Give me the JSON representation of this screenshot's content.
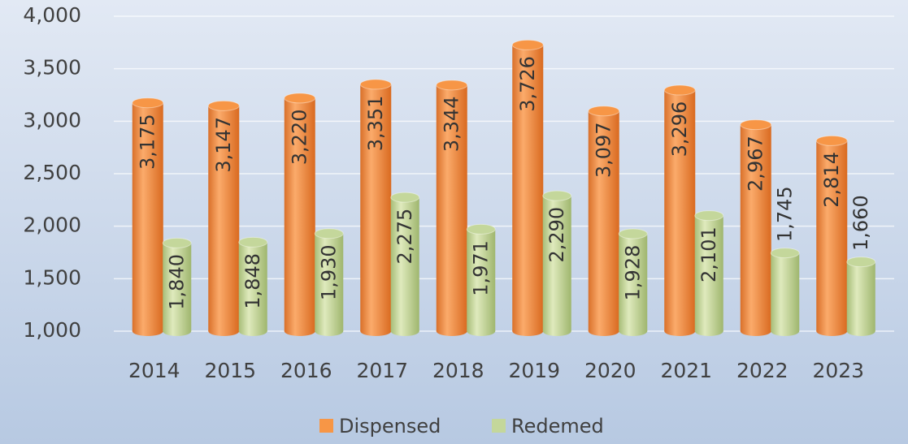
{
  "chart_data": {
    "type": "bar",
    "categories": [
      "2014",
      "2015",
      "2016",
      "2017",
      "2018",
      "2019",
      "2020",
      "2021",
      "2022",
      "2023"
    ],
    "series": [
      {
        "name": "Dispensed",
        "color": "#f79646",
        "values": [
          3175,
          3147,
          3220,
          3351,
          3344,
          3726,
          3097,
          3296,
          2967,
          2814
        ],
        "value_labels": [
          "3,175",
          "3,147",
          "3,220",
          "3,351",
          "3,344",
          "3,726",
          "3,097",
          "3,296",
          "2,967",
          "2,814"
        ]
      },
      {
        "name": "Redemed",
        "color": "#c4d79b",
        "values": [
          1840,
          1848,
          1930,
          2275,
          1971,
          2290,
          1928,
          2101,
          1745,
          1660
        ],
        "value_labels": [
          "1,840",
          "1,848",
          "1,930",
          "2,275",
          "1,971",
          "2,290",
          "1,928",
          "2,101",
          "1,745",
          "1,660"
        ]
      }
    ],
    "ylim": [
      1000,
      4000
    ],
    "yticks": [
      {
        "value": 1000,
        "label": "1,000"
      },
      {
        "value": 1500,
        "label": "1,500"
      },
      {
        "value": 2000,
        "label": "2,000"
      },
      {
        "value": 2500,
        "label": "2,500"
      },
      {
        "value": 3000,
        "label": "3,000"
      },
      {
        "value": 3500,
        "label": "3,500"
      },
      {
        "value": 4000,
        "label": "4,000"
      }
    ],
    "grid": true,
    "legend": "bottom"
  }
}
